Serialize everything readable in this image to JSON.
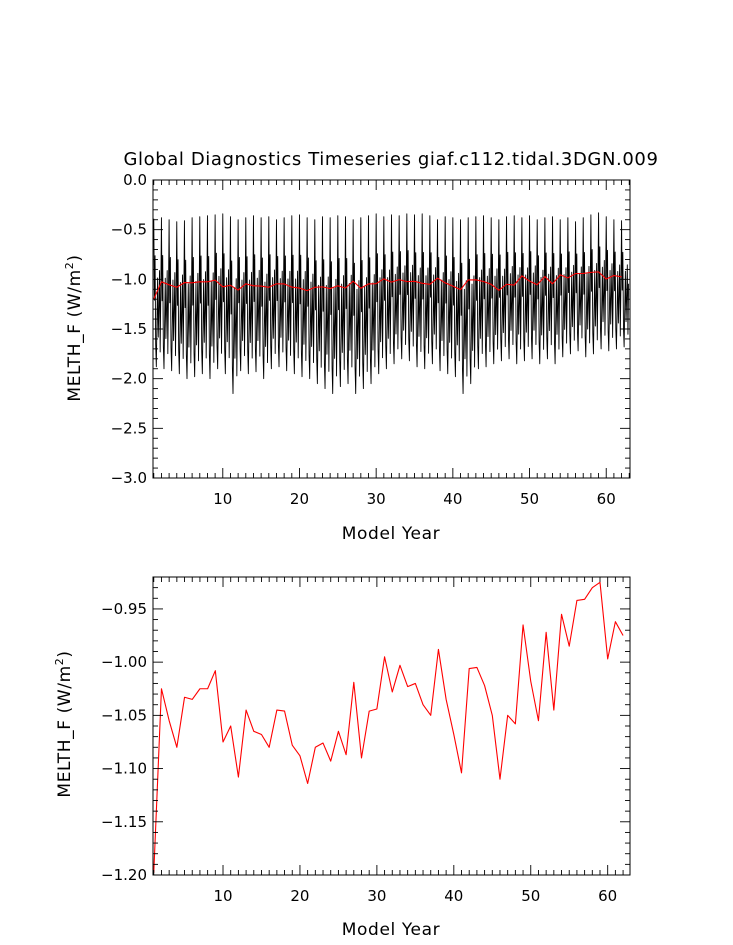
{
  "chart_data": [
    {
      "type": "line",
      "title": "Global Diagnostics Timeseries giaf.c112.tidal.3DGN.009",
      "xlabel": "Model Year",
      "ylabel": "MELTH_F (W/m2)",
      "ylabel_main": "MELTH_F (W/m",
      "ylabel_sup": "2",
      "ylabel_close": ")",
      "xlim": [
        0.9,
        63.1
      ],
      "ylim": [
        -3.0,
        0.0
      ],
      "xticks": [
        10,
        20,
        30,
        40,
        50,
        60
      ],
      "xtick_labels": [
        "10",
        "20",
        "30",
        "40",
        "50",
        "60"
      ],
      "yticks": [
        0.0,
        -0.5,
        -1.0,
        -1.5,
        -2.0,
        -2.5,
        -3.0
      ],
      "ytick_labels": [
        "0.0",
        "−0.5",
        "−1.0",
        "−1.5",
        "−2.0",
        "−2.5",
        "−3.0"
      ],
      "grid": false,
      "series": [
        {
          "color": "#000000",
          "kind": "monthly",
          "note_seasonal_cycle": "monthly values oscillate between roughly -0.35 and -2.1 each year",
          "yearly_max": [
            -0.39,
            -0.38,
            -0.4,
            -0.42,
            -0.41,
            -0.38,
            -0.37,
            -0.36,
            -0.35,
            -0.34,
            -0.37,
            -0.4,
            -0.38,
            -0.36,
            -0.38,
            -0.37,
            -0.4,
            -0.38,
            -0.36,
            -0.35,
            -0.38,
            -0.4,
            -0.37,
            -0.38,
            -0.36,
            -0.37,
            -0.4,
            -0.38,
            -0.36,
            -0.34,
            -0.37,
            -0.35,
            -0.36,
            -0.34,
            -0.35,
            -0.34,
            -0.36,
            -0.4,
            -0.37,
            -0.38,
            -0.4,
            -0.38,
            -0.37,
            -0.36,
            -0.38,
            -0.4,
            -0.37,
            -0.36,
            -0.38,
            -0.36,
            -0.4,
            -0.38,
            -0.37,
            -0.4,
            -0.38,
            -0.42,
            -0.38,
            -0.35,
            -0.33,
            -0.37,
            -0.4,
            -0.41
          ],
          "yearly_min": [
            -1.88,
            -1.9,
            -1.92,
            -1.95,
            -2.0,
            -1.98,
            -1.95,
            -2.0,
            -1.9,
            -1.95,
            -2.15,
            -1.92,
            -1.95,
            -1.93,
            -2.0,
            -1.9,
            -1.88,
            -1.92,
            -1.95,
            -1.98,
            -2.0,
            -2.05,
            -2.1,
            -2.15,
            -2.08,
            -2.05,
            -2.15,
            -2.1,
            -2.05,
            -1.95,
            -1.9,
            -1.85,
            -1.8,
            -1.82,
            -1.88,
            -1.9,
            -1.85,
            -1.92,
            -1.95,
            -1.98,
            -2.15,
            -2.05,
            -1.9,
            -1.88,
            -1.85,
            -1.82,
            -1.8,
            -1.85,
            -1.82,
            -1.8,
            -1.85,
            -1.8,
            -1.85,
            -1.78,
            -1.75,
            -1.72,
            -1.78,
            -1.75,
            -1.7,
            -1.72,
            -1.7,
            -1.68
          ]
        },
        {
          "color": "#ff0000",
          "kind": "annual",
          "x": [
            1,
            2,
            3,
            4,
            5,
            6,
            7,
            8,
            9,
            10,
            11,
            12,
            13,
            14,
            15,
            16,
            17,
            18,
            19,
            20,
            21,
            22,
            23,
            24,
            25,
            26,
            27,
            28,
            29,
            30,
            31,
            32,
            33,
            34,
            35,
            36,
            37,
            38,
            39,
            40,
            41,
            42,
            43,
            44,
            45,
            46,
            47,
            48,
            49,
            50,
            51,
            52,
            53,
            54,
            55,
            56,
            57,
            58,
            59,
            60,
            61,
            62
          ],
          "values": [
            -1.198,
            -1.025,
            -1.055,
            -1.08,
            -1.033,
            -1.035,
            -1.025,
            -1.025,
            -1.008,
            -1.075,
            -1.06,
            -1.108,
            -1.045,
            -1.065,
            -1.068,
            -1.08,
            -1.045,
            -1.046,
            -1.078,
            -1.088,
            -1.114,
            -1.08,
            -1.076,
            -1.093,
            -1.065,
            -1.087,
            -1.019,
            -1.09,
            -1.046,
            -1.044,
            -0.995,
            -1.028,
            -1.003,
            -1.023,
            -1.02,
            -1.04,
            -1.05,
            -0.988,
            -1.035,
            -1.068,
            -1.104,
            -1.006,
            -1.005,
            -1.022,
            -1.05,
            -1.11,
            -1.05,
            -1.058,
            -0.965,
            -1.018,
            -1.055,
            -0.972,
            -1.045,
            -0.955,
            -0.985,
            -0.942,
            -0.941,
            -0.93,
            -0.925,
            -0.997,
            -0.962,
            -0.975
          ]
        }
      ]
    },
    {
      "type": "line",
      "title": "",
      "xlabel": "Model Year",
      "ylabel": "MELTH_F (W/m2)",
      "ylabel_main": "MELTH_F (W/m",
      "ylabel_sup": "2",
      "ylabel_close": ")",
      "xlim": [
        0.9,
        62.9
      ],
      "ylim": [
        -1.2,
        -0.92
      ],
      "xticks": [
        10,
        20,
        30,
        40,
        50,
        60
      ],
      "xtick_labels": [
        "10",
        "20",
        "30",
        "40",
        "50",
        "60"
      ],
      "yticks": [
        -0.95,
        -1.0,
        -1.05,
        -1.1,
        -1.15,
        -1.2
      ],
      "ytick_labels": [
        "−0.95",
        "−1.00",
        "−1.05",
        "−1.10",
        "−1.15",
        "−1.20"
      ],
      "grid": false,
      "series": [
        {
          "color": "#ff0000",
          "kind": "annual",
          "x": [
            1,
            2,
            3,
            4,
            5,
            6,
            7,
            8,
            9,
            10,
            11,
            12,
            13,
            14,
            15,
            16,
            17,
            18,
            19,
            20,
            21,
            22,
            23,
            24,
            25,
            26,
            27,
            28,
            29,
            30,
            31,
            32,
            33,
            34,
            35,
            36,
            37,
            38,
            39,
            40,
            41,
            42,
            43,
            44,
            45,
            46,
            47,
            48,
            49,
            50,
            51,
            52,
            53,
            54,
            55,
            56,
            57,
            58,
            59,
            60,
            61,
            62
          ],
          "values": [
            -1.198,
            -1.025,
            -1.055,
            -1.08,
            -1.033,
            -1.035,
            -1.025,
            -1.025,
            -1.008,
            -1.075,
            -1.06,
            -1.108,
            -1.045,
            -1.065,
            -1.068,
            -1.08,
            -1.045,
            -1.046,
            -1.078,
            -1.088,
            -1.114,
            -1.08,
            -1.076,
            -1.093,
            -1.065,
            -1.087,
            -1.019,
            -1.09,
            -1.046,
            -1.044,
            -0.995,
            -1.028,
            -1.003,
            -1.023,
            -1.02,
            -1.04,
            -1.05,
            -0.988,
            -1.035,
            -1.068,
            -1.104,
            -1.006,
            -1.005,
            -1.022,
            -1.05,
            -1.11,
            -1.05,
            -1.058,
            -0.965,
            -1.018,
            -1.055,
            -0.972,
            -1.045,
            -0.955,
            -0.985,
            -0.942,
            -0.941,
            -0.93,
            -0.925,
            -0.997,
            -0.962,
            -0.975
          ]
        }
      ]
    }
  ]
}
